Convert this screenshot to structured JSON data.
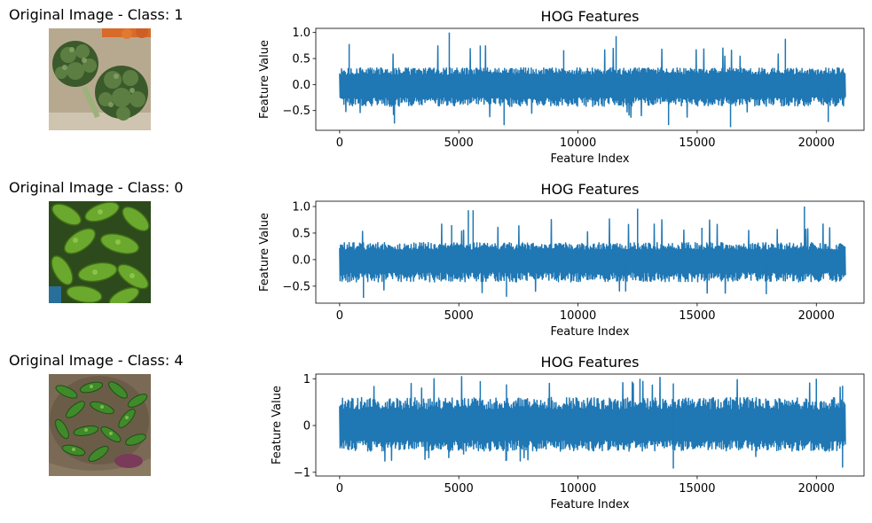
{
  "colors": {
    "series": "#1f77b4",
    "broccoli_dark": "#2f4a25",
    "broccoli_light": "#7d9a5e",
    "bittergourd": "#5f9a2a",
    "cucumber": "#3f7a2c",
    "basket": "#8a7356"
  },
  "panels": [
    {
      "image_title": "Original Image - Class: 1",
      "image_subject": "broccoli",
      "chart": {
        "type": "line",
        "title": "HOG Features",
        "xlabel": "Feature Index",
        "ylabel": "Feature Value",
        "xlim": [
          -1000,
          22000
        ],
        "ylim": [
          -0.88,
          1.08
        ],
        "x_ticks": [
          0,
          5000,
          10000,
          15000,
          20000
        ],
        "x_tick_labels": [
          "0",
          "5000",
          "10000",
          "15000",
          "20000"
        ],
        "y_ticks": [
          -0.5,
          0.0,
          0.5,
          1.0
        ],
        "y_tick_labels": [
          "−0.5",
          "0.0",
          "0.5",
          "1.0"
        ],
        "x_range": [
          0,
          21200
        ],
        "band": [
          -0.42,
          0.32
        ],
        "spikes_high": [
          [
            4600,
            1.0
          ],
          [
            11600,
            0.93
          ],
          [
            18700,
            0.88
          ],
          [
            5900,
            0.75
          ],
          [
            400,
            0.78
          ],
          [
            9400,
            0.66
          ]
        ],
        "spikes_low": [
          [
            2300,
            -0.75
          ],
          [
            6900,
            -0.78
          ],
          [
            13800,
            -0.78
          ],
          [
            16400,
            -0.82
          ],
          [
            20500,
            -0.72
          ]
        ],
        "grid": false
      }
    },
    {
      "image_title": "Original Image - Class: 0",
      "image_subject": "bitter gourd",
      "chart": {
        "type": "line",
        "title": "HOG Features",
        "xlabel": "Feature Index",
        "ylabel": "Feature Value",
        "xlim": [
          -1000,
          22000
        ],
        "ylim": [
          -0.82,
          1.1
        ],
        "x_ticks": [
          0,
          5000,
          10000,
          15000,
          20000
        ],
        "x_tick_labels": [
          "0",
          "5000",
          "10000",
          "15000",
          "20000"
        ],
        "y_ticks": [
          -0.5,
          0.0,
          0.5,
          1.0
        ],
        "y_tick_labels": [
          "−0.5",
          "0.0",
          "0.5",
          "1.0"
        ],
        "x_range": [
          0,
          21200
        ],
        "band": [
          -0.42,
          0.32
        ],
        "spikes_high": [
          [
            5400,
            0.93
          ],
          [
            5600,
            0.93
          ],
          [
            12500,
            0.96
          ],
          [
            19500,
            1.0
          ],
          [
            4700,
            0.65
          ],
          [
            15200,
            0.6
          ]
        ],
        "spikes_low": [
          [
            1000,
            -0.72
          ],
          [
            7000,
            -0.7
          ],
          [
            12000,
            -0.6
          ],
          [
            17900,
            -0.65
          ]
        ],
        "grid": false
      }
    },
    {
      "image_title": "Original Image - Class: 4",
      "image_subject": "cucumbers in basket",
      "chart": {
        "type": "line",
        "title": "HOG Features",
        "xlabel": "Feature Index",
        "ylabel": "Feature Value",
        "xlim": [
          -1000,
          22000
        ],
        "ylim": [
          -1.08,
          1.1
        ],
        "x_ticks": [
          0,
          5000,
          10000,
          15000,
          20000
        ],
        "x_tick_labels": [
          "0",
          "5000",
          "10000",
          "15000",
          "20000"
        ],
        "y_ticks": [
          -1,
          0,
          1
        ],
        "y_tick_labels": [
          "−1",
          "0",
          "1"
        ],
        "x_range": [
          0,
          21200
        ],
        "band": [
          -0.55,
          0.6
        ],
        "spikes_high": [
          [
            5900,
            0.95
          ],
          [
            7000,
            0.88
          ],
          [
            12600,
            1.0
          ],
          [
            14000,
            0.9
          ],
          [
            20000,
            1.0
          ],
          [
            21100,
            0.85
          ]
        ],
        "spikes_low": [
          [
            7000,
            -0.75
          ],
          [
            14000,
            -0.92
          ],
          [
            21100,
            -0.9
          ],
          [
            5200,
            -0.62
          ]
        ],
        "grid": false
      }
    }
  ]
}
